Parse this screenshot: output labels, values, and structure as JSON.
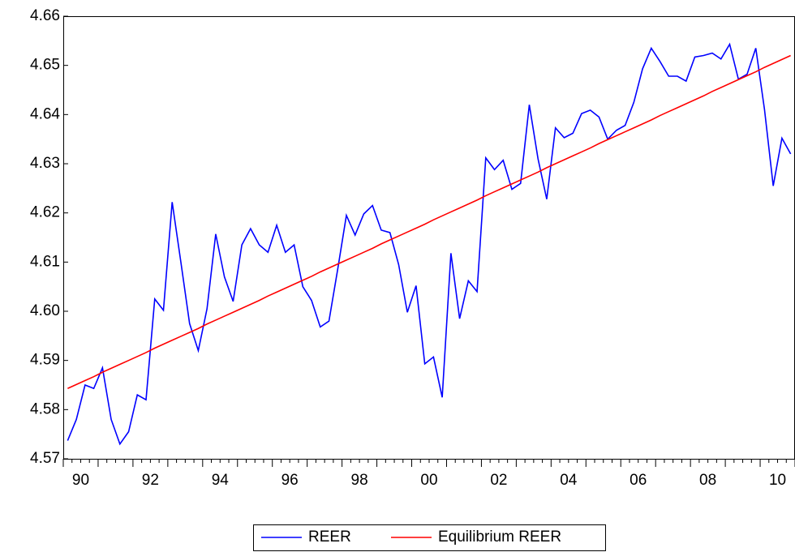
{
  "chart_data": {
    "type": "line",
    "categories": [
      "90",
      null,
      null,
      null,
      null,
      null,
      null,
      null,
      "92",
      null,
      null,
      null,
      null,
      null,
      null,
      null,
      "94",
      null,
      null,
      null,
      null,
      null,
      null,
      null,
      "96",
      null,
      null,
      null,
      null,
      null,
      null,
      null,
      "98",
      null,
      null,
      null,
      null,
      null,
      null,
      null,
      "00",
      null,
      null,
      null,
      null,
      null,
      null,
      null,
      "02",
      null,
      null,
      null,
      null,
      null,
      null,
      null,
      "04",
      null,
      null,
      null,
      null,
      null,
      null,
      null,
      "06",
      null,
      null,
      null,
      null,
      null,
      null,
      null,
      "08",
      null,
      null,
      null,
      null,
      null,
      null,
      null,
      "10",
      null,
      null,
      null
    ],
    "series": [
      {
        "name": "REER",
        "color": "#0000ff",
        "values": [
          4.5737,
          4.578,
          4.585,
          4.5843,
          4.5885,
          4.578,
          4.573,
          4.5755,
          4.583,
          4.582,
          4.6025,
          4.6002,
          4.6222,
          4.61,
          4.5975,
          4.592,
          4.6005,
          4.6157,
          4.607,
          4.602,
          4.6135,
          4.6168,
          4.6135,
          4.612,
          4.6175,
          4.612,
          4.6135,
          4.605,
          4.6022,
          4.5968,
          4.598,
          4.6085,
          4.6195,
          4.6155,
          4.6198,
          4.6215,
          4.6165,
          4.616,
          4.6095,
          4.5998,
          4.6052,
          4.5893,
          4.5907,
          4.5825,
          4.6118,
          4.5985,
          4.6062,
          4.604,
          4.6312,
          4.6288,
          4.6307,
          4.6248,
          4.626,
          4.642,
          4.631,
          4.6228,
          4.6373,
          4.6353,
          4.6362,
          4.6402,
          4.6409,
          4.6395,
          4.635,
          4.6368,
          4.6378,
          4.6425,
          4.6493,
          4.6535,
          4.6508,
          4.6478,
          4.6478,
          4.6468,
          4.6517,
          4.652,
          4.6525,
          4.6513,
          4.6543,
          4.6472,
          4.6482,
          4.6535,
          4.641,
          4.6255,
          4.6352,
          4.632
        ]
      },
      {
        "name": "Equilibrium REER",
        "color": "#ff0000",
        "values": [
          4.5843,
          4.5851,
          4.5859,
          4.5867,
          4.5876,
          4.5884,
          4.5892,
          4.59,
          4.5908,
          4.5916,
          4.5925,
          4.5933,
          4.5941,
          4.5949,
          4.5957,
          4.5965,
          4.5974,
          4.5982,
          4.599,
          4.5998,
          4.6006,
          4.6014,
          4.6022,
          4.6031,
          4.6039,
          4.6047,
          4.6055,
          4.6063,
          4.6071,
          4.608,
          4.6088,
          4.6096,
          4.6104,
          4.6112,
          4.612,
          4.6128,
          4.6137,
          4.6145,
          4.6153,
          4.6161,
          4.6169,
          4.6177,
          4.6186,
          4.6194,
          4.6202,
          4.621,
          4.6218,
          4.6226,
          4.6235,
          4.6243,
          4.6251,
          4.6259,
          4.6267,
          4.6275,
          4.6283,
          4.6292,
          4.63,
          4.6308,
          4.6316,
          4.6324,
          4.6332,
          4.6341,
          4.6349,
          4.6357,
          4.6365,
          4.6373,
          4.6381,
          4.6389,
          4.6398,
          4.6406,
          4.6414,
          4.6422,
          4.643,
          4.6438,
          4.6447,
          4.6455,
          4.6463,
          4.6471,
          4.6479,
          4.6487,
          4.6496,
          4.6504,
          4.6512,
          4.652
        ]
      }
    ],
    "ylim": [
      4.57,
      4.66
    ],
    "yticks": [
      4.57,
      4.58,
      4.59,
      {
        "value": 4.6,
        "label": "4.60"
      },
      4.61,
      4.62,
      4.63,
      4.64,
      4.65,
      4.66
    ],
    "grid": false,
    "legend": "bottom"
  }
}
